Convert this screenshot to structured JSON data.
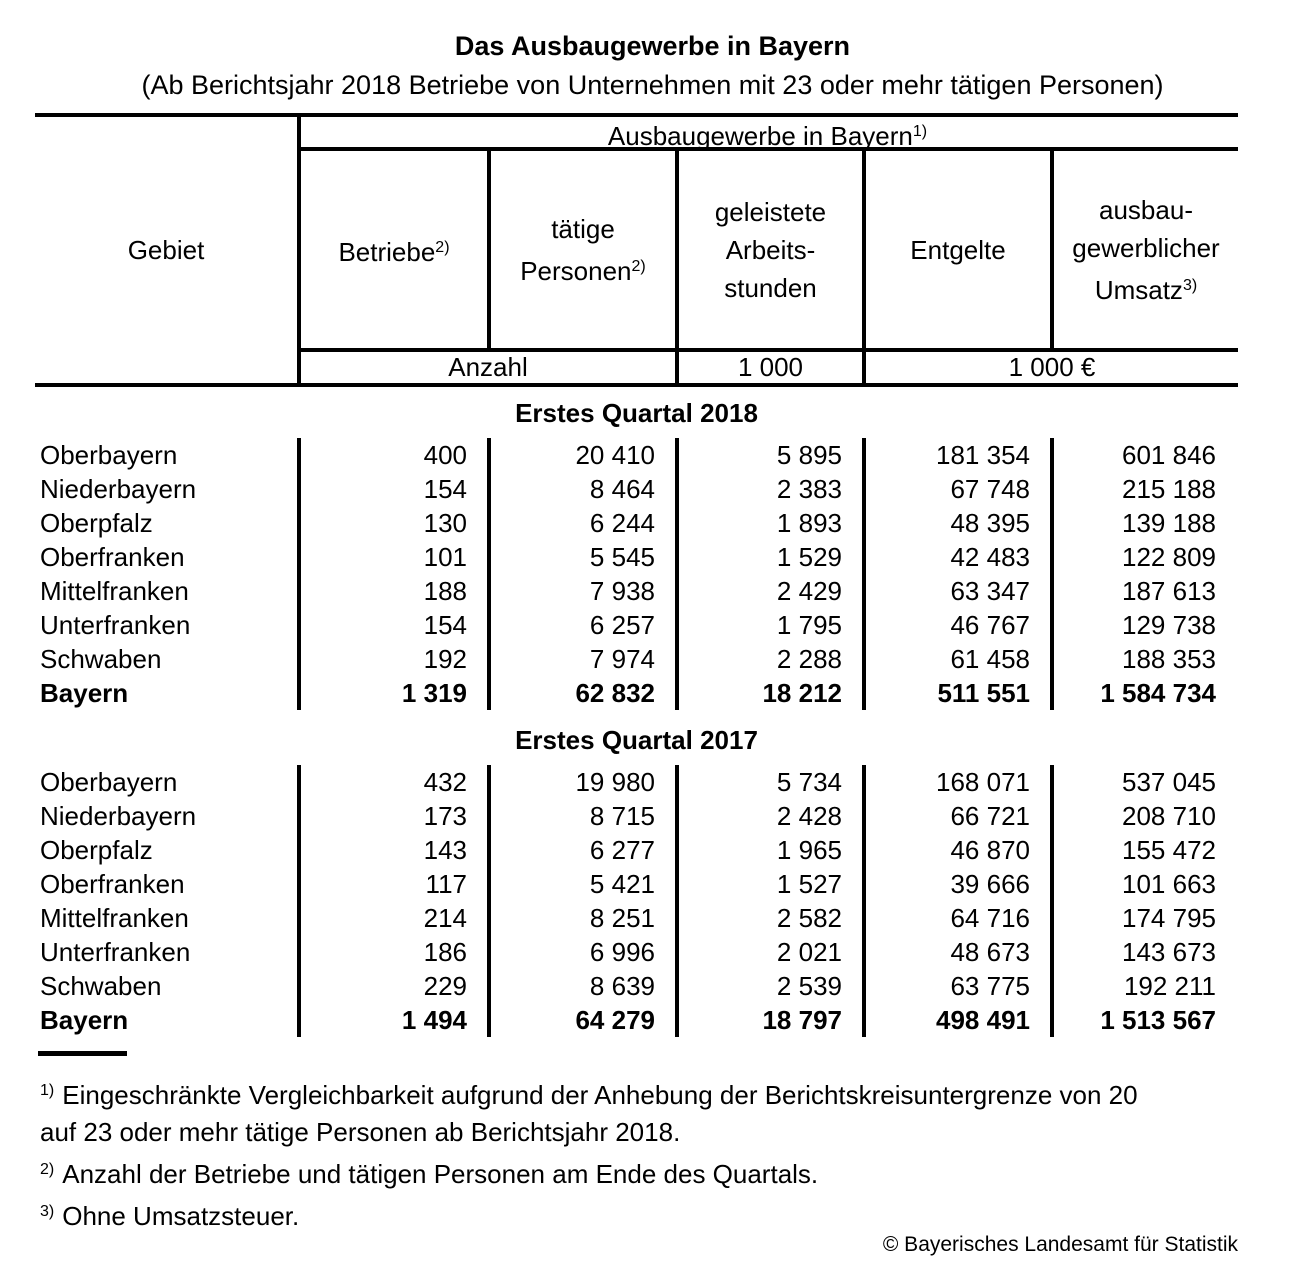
{
  "title": "Das Ausbaugewerbe in Bayern",
  "subtitle": "(Ab Berichtsjahr 2018 Betriebe von Unternehmen mit 23 oder mehr tätigen Personen)",
  "table": {
    "gebiet_label": "Gebiet",
    "group_header": {
      "text": "Ausbaugewerbe in Bayern",
      "sup": "1)"
    },
    "columns": [
      {
        "lines": [
          "Betriebe"
        ],
        "sup": "2)"
      },
      {
        "lines": [
          "tätige",
          "Personen"
        ],
        "sup": "2)"
      },
      {
        "lines": [
          "geleistete",
          "Arbeits-",
          "stunden"
        ],
        "sup": ""
      },
      {
        "lines": [
          "Entgelte"
        ],
        "sup": ""
      },
      {
        "lines": [
          "ausbau-",
          "gewerblicher",
          "Umsatz"
        ],
        "sup": "3)"
      }
    ],
    "units": {
      "anzahl": "Anzahl",
      "hours": "1 000",
      "money": "1 000 €"
    }
  },
  "sections": [
    {
      "title": "Erstes Quartal 2018",
      "rows": [
        {
          "gebiet": "Oberbayern",
          "values": [
            "400",
            "20 410",
            "5 895",
            "181 354",
            "601 846"
          ],
          "total": false
        },
        {
          "gebiet": "Niederbayern",
          "values": [
            "154",
            "8 464",
            "2 383",
            "67 748",
            "215 188"
          ],
          "total": false
        },
        {
          "gebiet": "Oberpfalz",
          "values": [
            "130",
            "6 244",
            "1 893",
            "48 395",
            "139 188"
          ],
          "total": false
        },
        {
          "gebiet": "Oberfranken",
          "values": [
            "101",
            "5 545",
            "1 529",
            "42 483",
            "122 809"
          ],
          "total": false
        },
        {
          "gebiet": "Mittelfranken",
          "values": [
            "188",
            "7 938",
            "2 429",
            "63 347",
            "187 613"
          ],
          "total": false
        },
        {
          "gebiet": "Unterfranken",
          "values": [
            "154",
            "6 257",
            "1 795",
            "46 767",
            "129 738"
          ],
          "total": false
        },
        {
          "gebiet": "Schwaben",
          "values": [
            "192",
            "7 974",
            "2 288",
            "61 458",
            "188 353"
          ],
          "total": false
        },
        {
          "gebiet": "Bayern",
          "values": [
            "1 319",
            "62 832",
            "18 212",
            "511 551",
            "1 584 734"
          ],
          "total": true
        }
      ]
    },
    {
      "title": "Erstes Quartal 2017",
      "rows": [
        {
          "gebiet": "Oberbayern",
          "values": [
            "432",
            "19 980",
            "5 734",
            "168 071",
            "537 045"
          ],
          "total": false
        },
        {
          "gebiet": "Niederbayern",
          "values": [
            "173",
            "8 715",
            "2 428",
            "66 721",
            "208 710"
          ],
          "total": false
        },
        {
          "gebiet": "Oberpfalz",
          "values": [
            "143",
            "6 277",
            "1 965",
            "46 870",
            "155 472"
          ],
          "total": false
        },
        {
          "gebiet": "Oberfranken",
          "values": [
            "117",
            "5 421",
            "1 527",
            "39 666",
            "101 663"
          ],
          "total": false
        },
        {
          "gebiet": "Mittelfranken",
          "values": [
            "214",
            "8 251",
            "2 582",
            "64 716",
            "174 795"
          ],
          "total": false
        },
        {
          "gebiet": "Unterfranken",
          "values": [
            "186",
            "6 996",
            "2 021",
            "48 673",
            "143 673"
          ],
          "total": false
        },
        {
          "gebiet": "Schwaben",
          "values": [
            "229",
            "8 639",
            "2 539",
            "63 775",
            "192 211"
          ],
          "total": false
        },
        {
          "gebiet": "Bayern",
          "values": [
            "1 494",
            "64 279",
            "18 797",
            "498 491",
            "1 513 567"
          ],
          "total": true
        }
      ]
    }
  ],
  "footnotes": [
    {
      "ref": "1)",
      "text": "Eingeschränkte Vergleichbarkeit aufgrund der Anhebung der Berichtskreisuntergrenze von 20 auf 23 oder mehr tätige Personen ab Berichtsjahr 2018."
    },
    {
      "ref": "2)",
      "text": "Anzahl der Betriebe und tätigen Personen am Ende des Quartals."
    },
    {
      "ref": "3)",
      "text": "Ohne Umsatzsteuer."
    }
  ],
  "copyright": "© Bayerisches Landesamt für Statistik"
}
